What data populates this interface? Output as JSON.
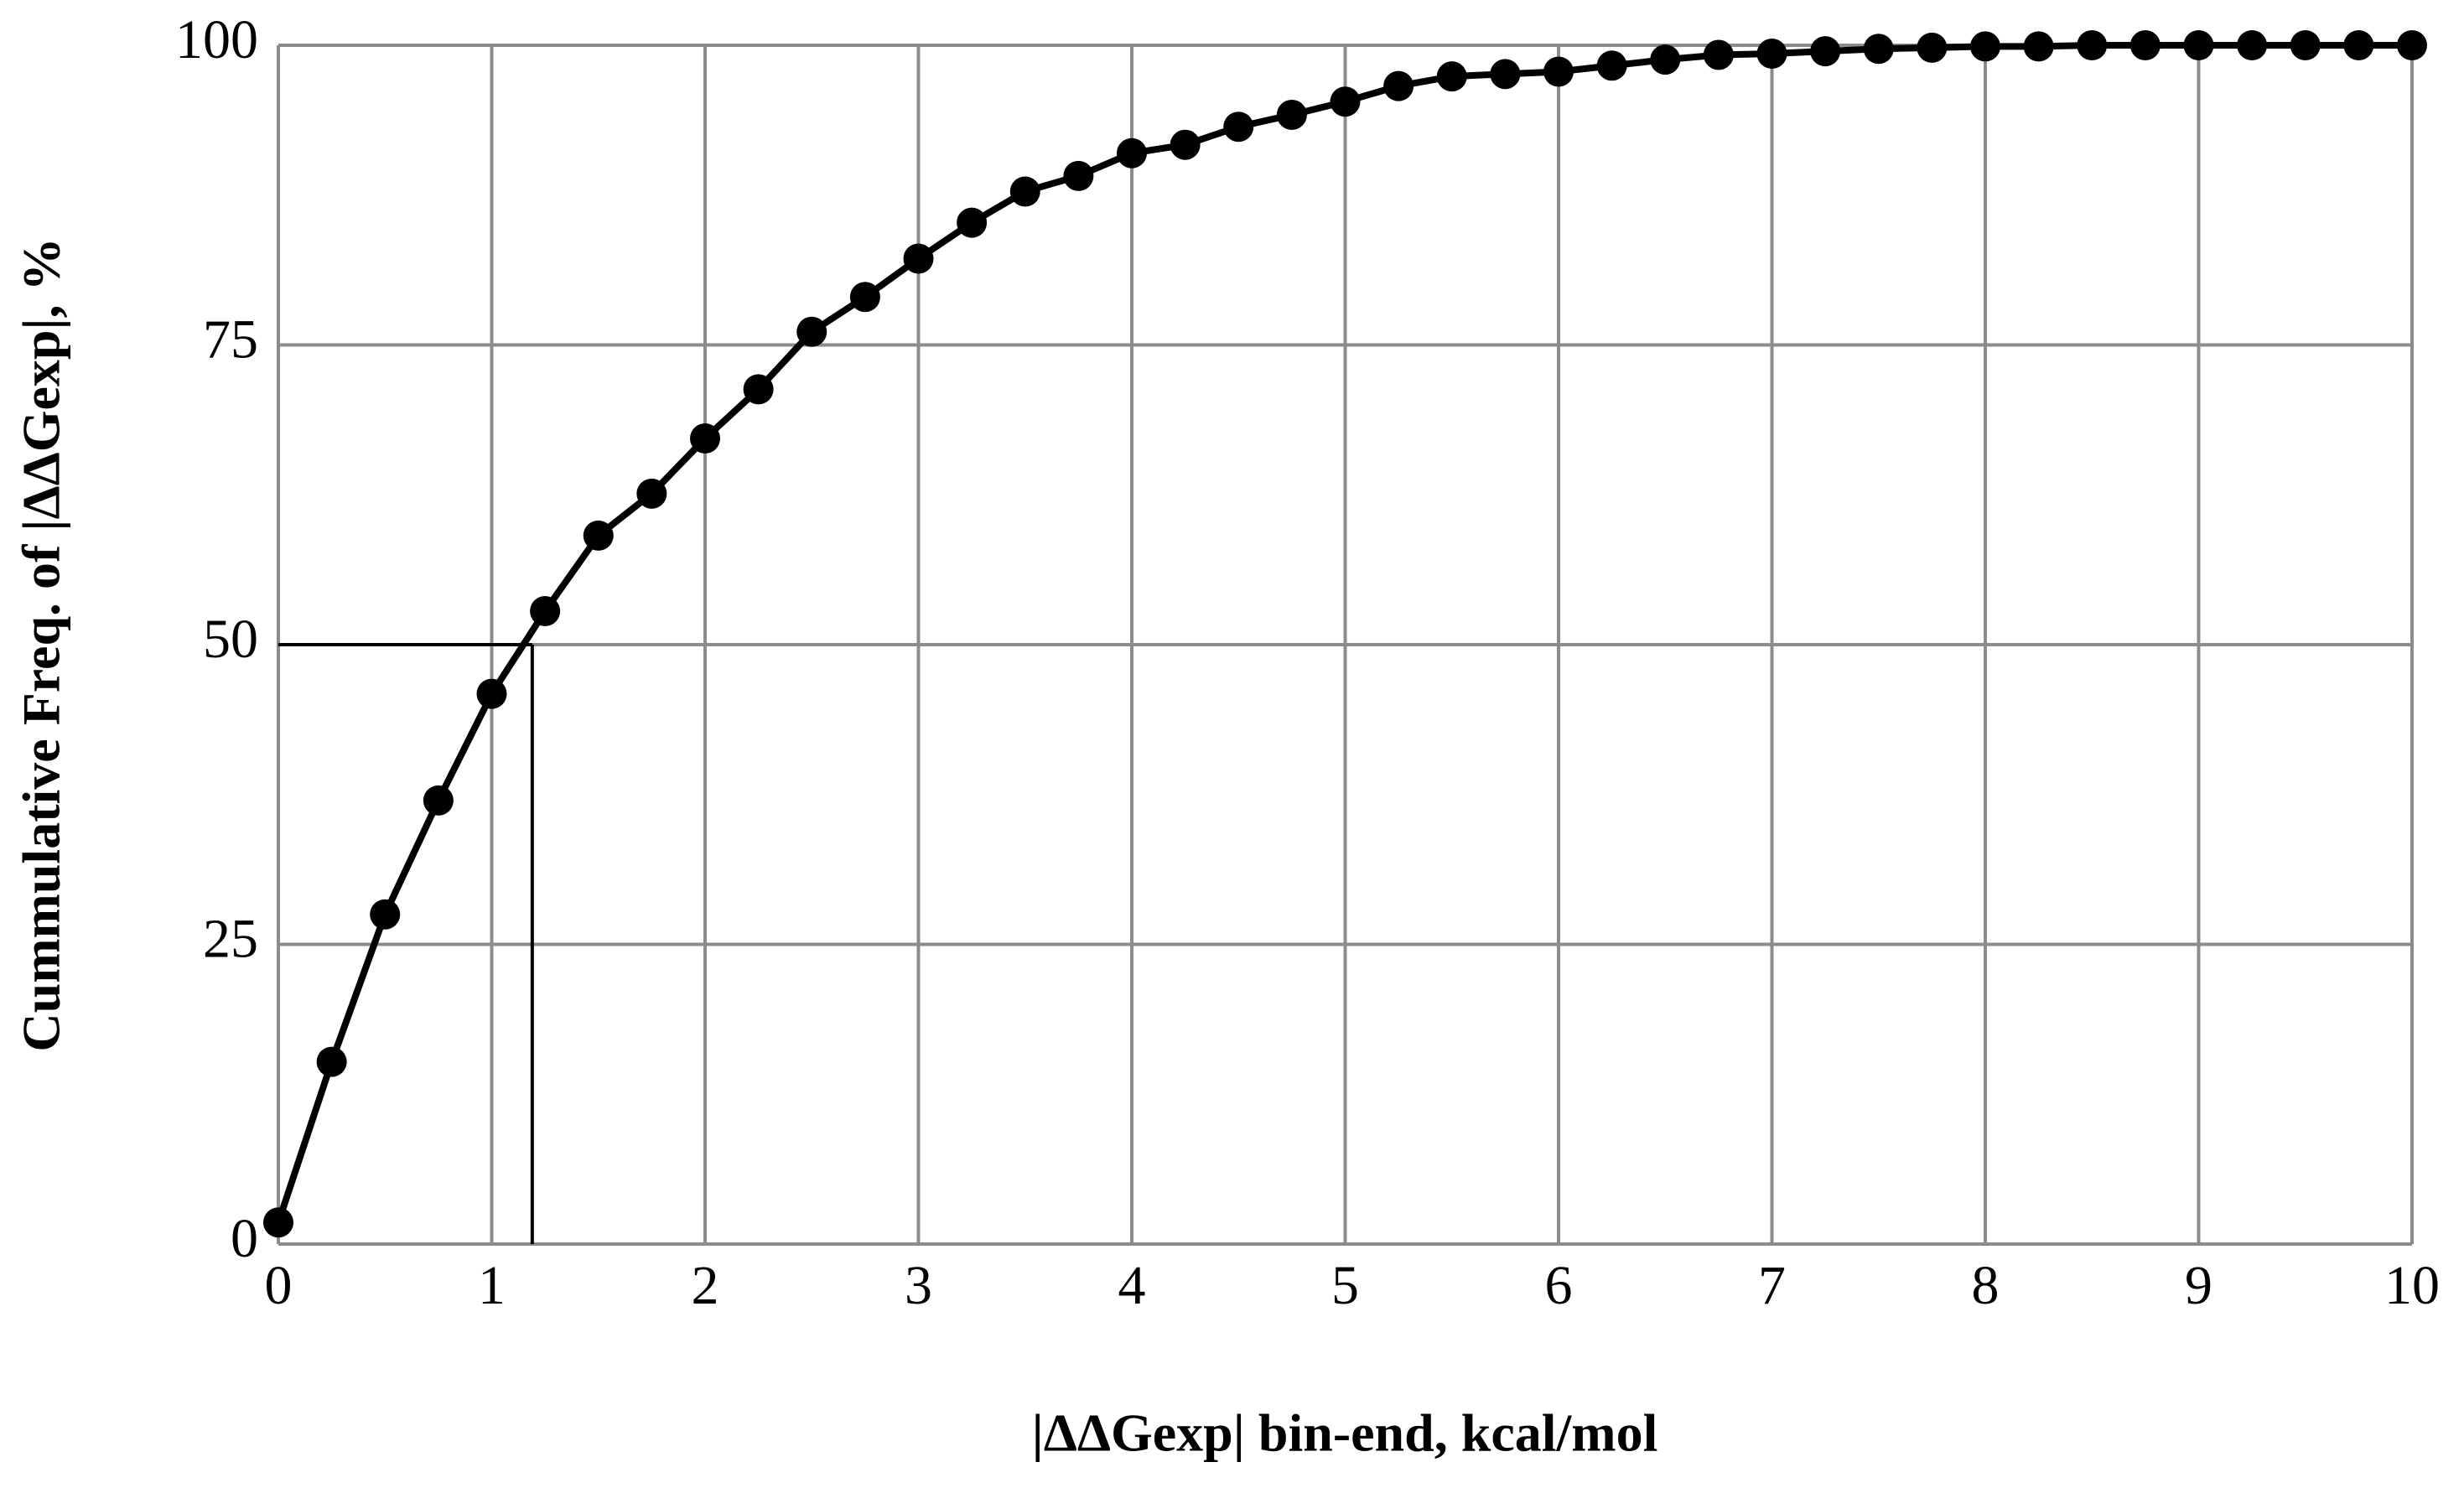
{
  "chart_data": {
    "type": "line",
    "xlabel": "|ΔΔGexp| bin-end, kcal/mol",
    "ylabel": "Cummulative Freq. of |ΔΔGexp|, %",
    "x": [
      0,
      0.25,
      0.5,
      0.75,
      1,
      1.25,
      1.5,
      1.75,
      2,
      2.25,
      2.5,
      2.75,
      3,
      3.25,
      3.5,
      3.75,
      4,
      4.25,
      4.5,
      4.75,
      5,
      5.25,
      5.5,
      5.75,
      6,
      6.25,
      6.5,
      6.75,
      7,
      7.25,
      7.5,
      7.75,
      8,
      8.25,
      8.5,
      8.75,
      9,
      9.25,
      9.5,
      9.75,
      10
    ],
    "series": [
      {
        "color": "#000000",
        "values": [
          1.8,
          15.2,
          27.5,
          37,
          45.9,
          52.8,
          59.1,
          62.6,
          67.2,
          71.3,
          76.1,
          79,
          82.2,
          85.2,
          87.8,
          89.1,
          91,
          91.7,
          93.2,
          94.2,
          95.3,
          96.6,
          97.4,
          97.6,
          97.8,
          98.3,
          98.8,
          99.2,
          99.3,
          99.5,
          99.7,
          99.8,
          99.9,
          99.9,
          100,
          100,
          100,
          100,
          100,
          100,
          100
        ]
      }
    ],
    "reference": {
      "x": 1.19,
      "y": 50
    },
    "xlim": [
      0,
      10
    ],
    "xticks": [
      0,
      1,
      2,
      3,
      4,
      5,
      6,
      7,
      8,
      9,
      10
    ],
    "ylim": [
      0,
      100
    ],
    "yticks": [
      0,
      25,
      50,
      75,
      100
    ],
    "grid": true
  }
}
